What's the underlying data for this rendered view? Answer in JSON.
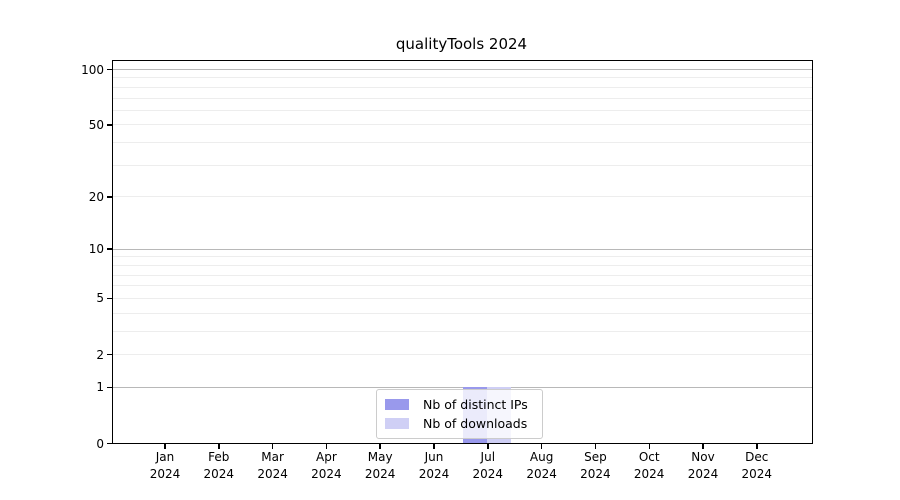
{
  "chart_data": {
    "type": "bar",
    "title": "qualityTools 2024",
    "categories": [
      "Jan 2024",
      "Feb 2024",
      "Mar 2024",
      "Apr 2024",
      "May 2024",
      "Jun 2024",
      "Jul 2024",
      "Aug 2024",
      "Sep 2024",
      "Oct 2024",
      "Nov 2024",
      "Dec 2024"
    ],
    "series": [
      {
        "name": "Nb of distinct IPs",
        "color": "#9999ec",
        "values": [
          0,
          0,
          0,
          0,
          0,
          0,
          1,
          0,
          0,
          0,
          0,
          0
        ]
      },
      {
        "name": "Nb of downloads",
        "color": "#cfcff5",
        "values": [
          0,
          0,
          0,
          0,
          0,
          0,
          1,
          0,
          0,
          0,
          0,
          0
        ]
      }
    ],
    "yscale": "log1p",
    "ylim": [
      0,
      110
    ],
    "yticks": [
      0,
      1,
      2,
      5,
      10,
      20,
      50,
      100
    ],
    "major_gridlines": [
      1,
      10,
      100
    ],
    "minor_gridlines": [
      2,
      3,
      4,
      5,
      6,
      7,
      8,
      9,
      20,
      30,
      40,
      50,
      60,
      70,
      80,
      90
    ],
    "grid": "horizontal",
    "legend_position": "lower center inside plot",
    "colors": {
      "major_grid": "#b8b8b8",
      "minor_grid": "#ededed",
      "axis": "#000000",
      "legend_border": "#cccccc"
    }
  }
}
